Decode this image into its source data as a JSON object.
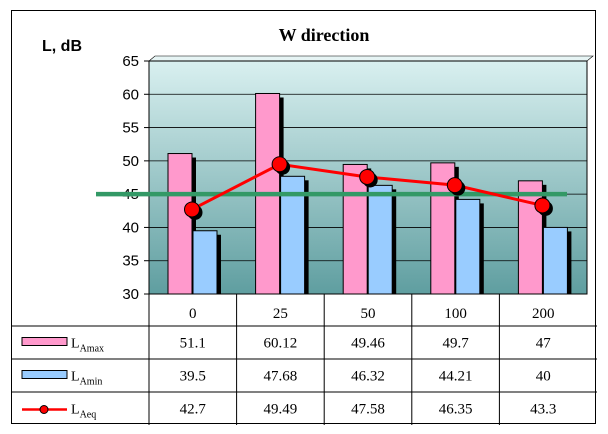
{
  "chart_data": {
    "type": "bar",
    "title": "W direction",
    "ylabel": "L, dB",
    "xlabel": "",
    "categories": [
      "0",
      "25",
      "50",
      "100",
      "200"
    ],
    "ylim": [
      30,
      65
    ],
    "yticks": [
      30,
      35,
      40,
      45,
      50,
      55,
      60,
      65
    ],
    "grid": true,
    "legend": "table",
    "series": [
      {
        "name_main": "L",
        "name_sub": "Amax",
        "kind": "bar",
        "color": "#ff99cc",
        "values": [
          51.1,
          60.12,
          49.46,
          49.7,
          47
        ],
        "labels": [
          "51.1",
          "60.12",
          "49.46",
          "49.7",
          "47"
        ]
      },
      {
        "name_main": "L",
        "name_sub": "Amin",
        "kind": "bar",
        "color": "#99ccff",
        "values": [
          39.5,
          47.68,
          46.32,
          44.21,
          40
        ],
        "labels": [
          "39.5",
          "47.68",
          "46.32",
          "44.21",
          "40"
        ]
      },
      {
        "name_main": "L",
        "name_sub": "Aeq",
        "kind": "line",
        "color": "#ff0000",
        "values": [
          42.7,
          49.49,
          47.58,
          46.35,
          43.3
        ],
        "labels": [
          "42.7",
          "49.49",
          "47.58",
          "46.35",
          "43.3"
        ]
      }
    ],
    "reference_line": {
      "value": 45,
      "color": "#339966"
    },
    "plot_background": {
      "top": "#d9f0f0",
      "bottom": "#5f9ea0"
    }
  }
}
